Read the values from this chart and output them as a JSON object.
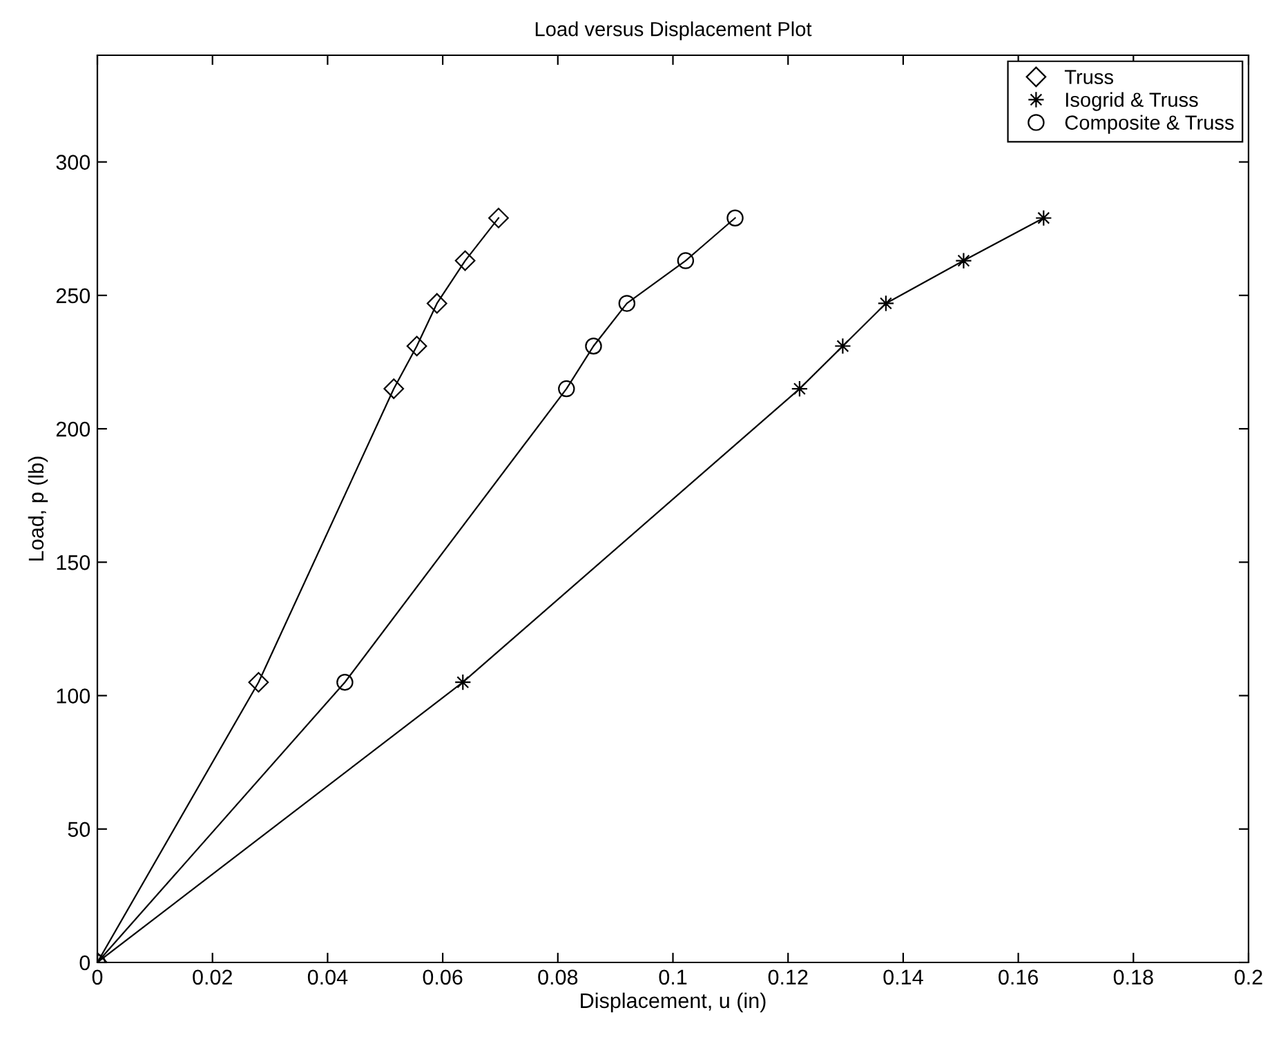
{
  "chart_data": {
    "type": "line",
    "title": "Load versus Displacement Plot",
    "xlabel": "Displacement, u (in)",
    "ylabel": "Load, p (lb)",
    "xlim": [
      0,
      0.2
    ],
    "ylim": [
      0,
      340
    ],
    "xticks": [
      0,
      0.02,
      0.04,
      0.06,
      0.08,
      0.1,
      0.12,
      0.14,
      0.16,
      0.18,
      0.2
    ],
    "yticks": [
      0,
      50,
      100,
      150,
      200,
      250,
      300
    ],
    "grid": false,
    "legend": "top right",
    "line_style": "solid",
    "series": [
      {
        "name": "Truss",
        "color": "#000000",
        "marker": "diamond",
        "x": [
          0,
          0.028,
          0.0515,
          0.0555,
          0.059,
          0.0639,
          0.0697
        ],
        "values": [
          0,
          105,
          215,
          231,
          247,
          263,
          279
        ]
      },
      {
        "name": "Isogrid & Truss",
        "color": "#000000",
        "marker": "star",
        "x": [
          0,
          0.0635,
          0.122,
          0.1295,
          0.137,
          0.1505,
          0.1644
        ],
        "values": [
          0,
          105,
          215,
          231,
          247,
          263,
          279
        ]
      },
      {
        "name": "Composite & Truss",
        "color": "#000000",
        "marker": "circle",
        "x": [
          0,
          0.043,
          0.0815,
          0.0862,
          0.092,
          0.1022,
          0.1108
        ],
        "values": [
          0,
          105,
          215,
          231,
          247,
          263,
          279
        ]
      }
    ]
  }
}
